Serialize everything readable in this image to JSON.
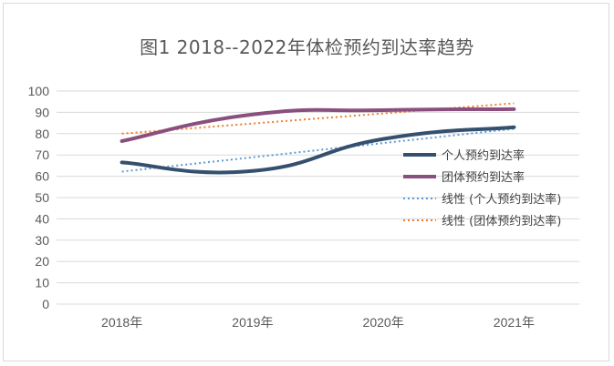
{
  "chart_data": {
    "type": "line",
    "title": "图1 2018--2022年体检预约到达率趋势",
    "xlabel": "",
    "ylabel": "",
    "categories": [
      "2018年",
      "2019年",
      "2020年",
      "2021年"
    ],
    "ylim": [
      0,
      100
    ],
    "yticks": [
      0,
      10,
      20,
      30,
      40,
      50,
      60,
      70,
      80,
      90,
      100
    ],
    "grid": true,
    "legend": "right",
    "series": [
      {
        "name": "个人预约到达率",
        "values": [
          66.5,
          62.5,
          77.5,
          83
        ],
        "color": "#34506e",
        "style": "smooth"
      },
      {
        "name": "团体预约到达率",
        "values": [
          76.5,
          89,
          91,
          91.5
        ],
        "color": "#8a4f7d",
        "style": "smooth"
      },
      {
        "name": "线性 (个人预约到达率)",
        "values": [
          62.2,
          68.9,
          75.6,
          82.3
        ],
        "color": "#5b9bd5",
        "style": "dotted"
      },
      {
        "name": "线性 (团体预约到达率)",
        "values": [
          80,
          84.75,
          89.5,
          94.25
        ],
        "color": "#ed7d31",
        "style": "dotted"
      }
    ]
  }
}
